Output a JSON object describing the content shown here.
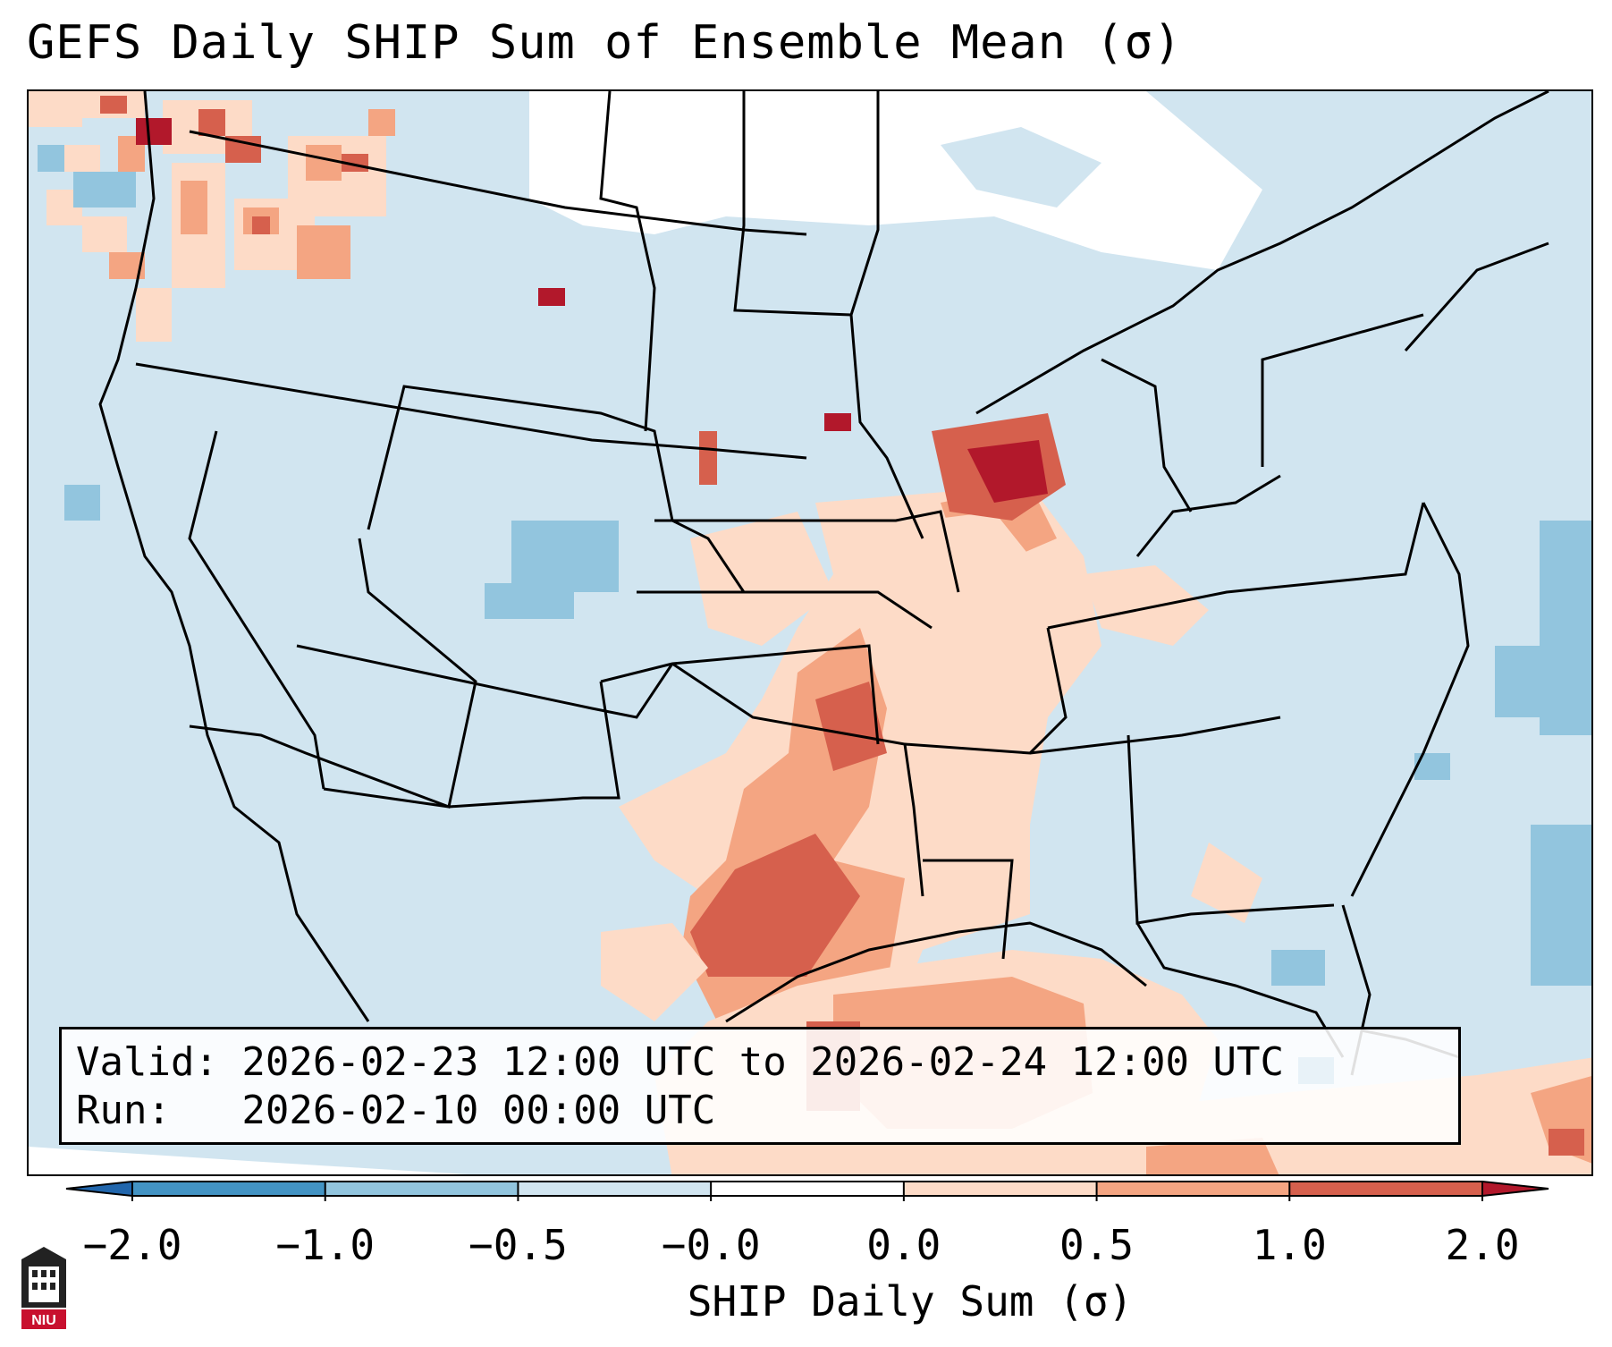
{
  "title": "GEFS Daily SHIP Sum of Ensemble Mean (σ)",
  "valid_line": "Valid: 2026-02-23 12:00 UTC to 2026-02-24 12:00 UTC",
  "run_line": "Run:   2026-02-10 00:00 UTC",
  "colorbar": {
    "label": "SHIP Daily Sum (σ)",
    "ticks": [
      "−2.0",
      "−1.0",
      "−0.5",
      "−0.0",
      "0.0",
      "0.5",
      "1.0",
      "2.0"
    ],
    "bins": [
      {
        "from": -2.0,
        "to": -1.0,
        "color": "#4393c3"
      },
      {
        "from": -1.0,
        "to": -0.5,
        "color": "#92c5de"
      },
      {
        "from": -0.5,
        "to": -0.0,
        "color": "#d1e5f0"
      },
      {
        "from": -0.0,
        "to": 0.0,
        "color": "#ffffff"
      },
      {
        "from": 0.0,
        "to": 0.5,
        "color": "#fddbc7"
      },
      {
        "from": 0.5,
        "to": 1.0,
        "color": "#f4a582"
      },
      {
        "from": 1.0,
        "to": 2.0,
        "color": "#d6604d"
      }
    ],
    "under_color": "#2166ac",
    "over_color": "#b2182b"
  },
  "colors": {
    "ocean_land_neutral": "#d1e5f0",
    "no_data": "#ffffff"
  },
  "logo_text": "NIU"
}
